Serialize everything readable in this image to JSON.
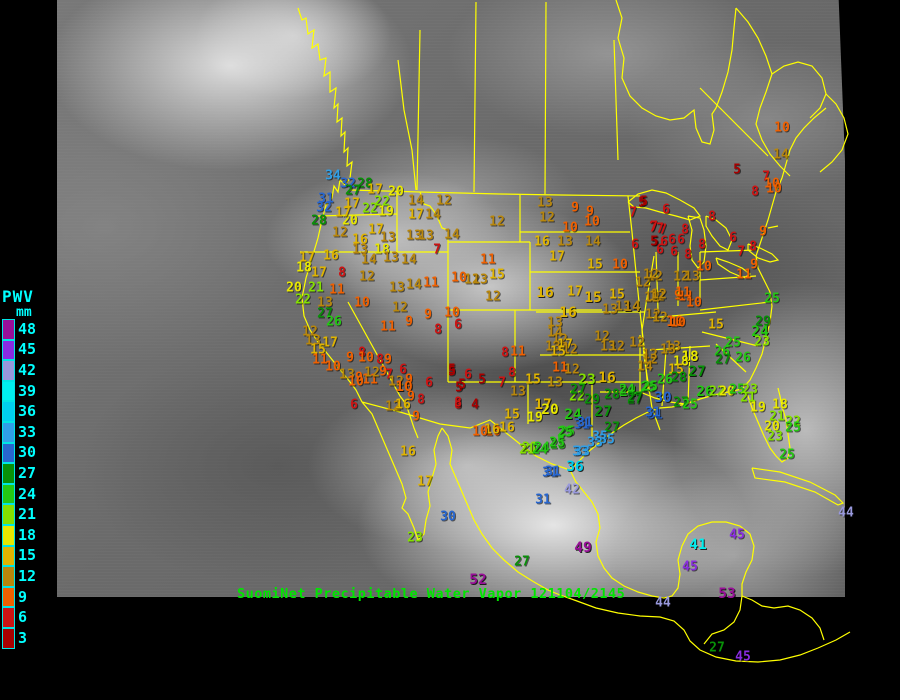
{
  "header": {
    "caption": "SuomiNet Precipitable Water Vapor 121104/2145"
  },
  "colors": {
    "background": "#000000",
    "outline": "#ffff00",
    "caption": "#00e600",
    "legend_text": "#00ffff"
  },
  "legend": {
    "title": "PWV",
    "unit": "mm",
    "entries": [
      {
        "value": 48,
        "color": "#990f99"
      },
      {
        "value": 45,
        "color": "#8a2be2"
      },
      {
        "value": 42,
        "color": "#9898dc"
      },
      {
        "value": 39,
        "color": "#00efef"
      },
      {
        "value": 36,
        "color": "#00cfee"
      },
      {
        "value": 33,
        "color": "#2f9fe8"
      },
      {
        "value": 30,
        "color": "#2766cf"
      },
      {
        "value": 27,
        "color": "#089008"
      },
      {
        "value": 24,
        "color": "#24c814"
      },
      {
        "value": 21,
        "color": "#84e000"
      },
      {
        "value": 18,
        "color": "#e8e800"
      },
      {
        "value": 15,
        "color": "#e0b400"
      },
      {
        "value": 12,
        "color": "#b8860b"
      },
      {
        "value": 9,
        "color": "#f06000"
      },
      {
        "value": 6,
        "color": "#cc1414"
      },
      {
        "value": 3,
        "color": "#a80000"
      }
    ]
  },
  "chart_data": {
    "type": "scatter",
    "title": "SuomiNet Precipitable Water Vapor",
    "timestamp": "121104/2145",
    "unit": "mm",
    "note": "station precipitable-water values plotted at map position (page px)",
    "stations": [
      [
        333,
        176,
        34
      ],
      [
        348,
        184,
        32
      ],
      [
        365,
        184,
        28
      ],
      [
        353,
        191,
        27
      ],
      [
        326,
        199,
        31
      ],
      [
        324,
        208,
        32
      ],
      [
        319,
        221,
        28
      ],
      [
        352,
        204,
        17
      ],
      [
        370,
        209,
        22
      ],
      [
        382,
        202,
        22
      ],
      [
        386,
        212,
        19
      ],
      [
        375,
        190,
        17
      ],
      [
        396,
        192,
        20
      ],
      [
        350,
        221,
        20
      ],
      [
        343,
        213,
        17
      ],
      [
        416,
        201,
        14
      ],
      [
        444,
        201,
        12
      ],
      [
        376,
        230,
        17
      ],
      [
        416,
        215,
        17
      ],
      [
        433,
        215,
        14
      ],
      [
        340,
        233,
        12
      ],
      [
        360,
        240,
        16
      ],
      [
        388,
        238,
        13
      ],
      [
        414,
        236,
        13
      ],
      [
        426,
        236,
        13
      ],
      [
        452,
        235,
        14
      ],
      [
        437,
        250,
        7
      ],
      [
        360,
        250,
        13
      ],
      [
        382,
        250,
        18
      ],
      [
        369,
        260,
        14
      ],
      [
        391,
        258,
        13
      ],
      [
        409,
        260,
        14
      ],
      [
        331,
        256,
        16
      ],
      [
        307,
        258,
        17
      ],
      [
        304,
        268,
        18
      ],
      [
        319,
        273,
        17
      ],
      [
        342,
        273,
        8
      ],
      [
        367,
        277,
        12
      ],
      [
        294,
        288,
        20
      ],
      [
        316,
        288,
        21
      ],
      [
        337,
        290,
        11
      ],
      [
        397,
        288,
        13
      ],
      [
        414,
        285,
        14
      ],
      [
        431,
        283,
        11
      ],
      [
        459,
        278,
        10
      ],
      [
        472,
        280,
        12
      ],
      [
        303,
        300,
        22
      ],
      [
        325,
        303,
        13
      ],
      [
        362,
        303,
        10
      ],
      [
        325,
        314,
        27
      ],
      [
        334,
        322,
        26
      ],
      [
        400,
        308,
        12
      ],
      [
        388,
        327,
        11
      ],
      [
        409,
        322,
        9
      ],
      [
        428,
        315,
        9
      ],
      [
        452,
        313,
        10
      ],
      [
        438,
        330,
        8
      ],
      [
        458,
        325,
        6
      ],
      [
        310,
        332,
        12
      ],
      [
        313,
        341,
        13
      ],
      [
        330,
        343,
        17
      ],
      [
        318,
        350,
        15
      ],
      [
        350,
        358,
        9
      ],
      [
        362,
        353,
        8
      ],
      [
        366,
        358,
        10
      ],
      [
        380,
        360,
        8
      ],
      [
        388,
        360,
        9
      ],
      [
        320,
        360,
        11
      ],
      [
        333,
        367,
        10
      ],
      [
        347,
        375,
        13
      ],
      [
        359,
        378,
        9
      ],
      [
        370,
        380,
        11
      ],
      [
        356,
        382,
        10
      ],
      [
        372,
        373,
        12
      ],
      [
        383,
        372,
        9
      ],
      [
        389,
        375,
        7
      ],
      [
        403,
        370,
        6
      ],
      [
        396,
        382,
        12
      ],
      [
        409,
        380,
        9
      ],
      [
        404,
        387,
        10,
        1
      ],
      [
        411,
        397,
        9
      ],
      [
        421,
        400,
        8
      ],
      [
        429,
        383,
        6
      ],
      [
        452,
        370,
        5
      ],
      [
        459,
        388,
        5
      ],
      [
        458,
        405,
        8
      ],
      [
        354,
        405,
        6
      ],
      [
        393,
        407,
        12
      ],
      [
        403,
        405,
        16
      ],
      [
        416,
        417,
        9
      ],
      [
        452,
        372,
        5
      ],
      [
        468,
        375,
        6
      ],
      [
        482,
        380,
        5
      ],
      [
        462,
        385,
        5
      ],
      [
        458,
        403,
        8
      ],
      [
        475,
        405,
        4
      ],
      [
        502,
        383,
        7
      ],
      [
        505,
        353,
        8
      ],
      [
        518,
        352,
        11
      ],
      [
        512,
        373,
        8
      ],
      [
        533,
        380,
        15
      ],
      [
        518,
        392,
        13
      ],
      [
        543,
        405,
        17,
        1
      ],
      [
        512,
        415,
        15
      ],
      [
        535,
        418,
        19
      ],
      [
        550,
        410,
        20,
        1
      ],
      [
        493,
        432,
        10
      ],
      [
        507,
        428,
        16
      ],
      [
        530,
        448,
        21
      ],
      [
        542,
        448,
        24
      ],
      [
        558,
        445,
        25
      ],
      [
        567,
        432,
        25
      ],
      [
        582,
        425,
        31
      ],
      [
        573,
        415,
        24,
        1
      ],
      [
        555,
        383,
        13
      ],
      [
        560,
        368,
        11
      ],
      [
        572,
        370,
        12
      ],
      [
        587,
        380,
        23,
        1
      ],
      [
        607,
        378,
        16,
        1
      ],
      [
        577,
        397,
        22
      ],
      [
        578,
        390,
        27
      ],
      [
        592,
        400,
        29
      ],
      [
        612,
        395,
        28
      ],
      [
        628,
        392,
        24,
        1
      ],
      [
        648,
        388,
        25
      ],
      [
        635,
        400,
        27
      ],
      [
        603,
        412,
        27,
        1
      ],
      [
        612,
        428,
        27
      ],
      [
        655,
        415,
        31
      ],
      [
        600,
        437,
        35
      ],
      [
        580,
        452,
        33
      ],
      [
        607,
        440,
        35
      ],
      [
        575,
        467,
        36,
        1
      ],
      [
        550,
        473,
        31
      ],
      [
        497,
        222,
        12
      ],
      [
        545,
        203,
        13
      ],
      [
        547,
        218,
        12
      ],
      [
        575,
        208,
        9
      ],
      [
        590,
        212,
        9
      ],
      [
        570,
        228,
        10
      ],
      [
        592,
        222,
        10
      ],
      [
        542,
        242,
        16
      ],
      [
        565,
        242,
        13
      ],
      [
        593,
        242,
        14
      ],
      [
        557,
        257,
        17
      ],
      [
        595,
        265,
        15
      ],
      [
        620,
        265,
        10
      ],
      [
        642,
        203,
        5
      ],
      [
        633,
        213,
        7
      ],
      [
        653,
        228,
        7
      ],
      [
        663,
        230,
        7
      ],
      [
        635,
        245,
        6
      ],
      [
        655,
        242,
        5
      ],
      [
        660,
        250,
        6
      ],
      [
        655,
        277,
        12
      ],
      [
        643,
        283,
        12
      ],
      [
        657,
        297,
        12
      ],
      [
        545,
        293,
        16,
        1
      ],
      [
        575,
        292,
        17
      ],
      [
        593,
        298,
        15,
        1
      ],
      [
        617,
        295,
        15
      ],
      [
        568,
        313,
        16,
        1
      ],
      [
        610,
        310,
        13
      ],
      [
        623,
        307,
        13
      ],
      [
        632,
        307,
        14,
        1
      ],
      [
        652,
        298,
        12
      ],
      [
        678,
        296,
        9
      ],
      [
        686,
        297,
        11
      ],
      [
        653,
        315,
        12
      ],
      [
        675,
        322,
        10,
        1
      ],
      [
        555,
        323,
        13
      ],
      [
        555,
        333,
        14
      ],
      [
        560,
        340,
        12
      ],
      [
        565,
        345,
        17
      ],
      [
        553,
        347,
        13
      ],
      [
        570,
        350,
        12
      ],
      [
        558,
        352,
        15
      ],
      [
        602,
        337,
        12
      ],
      [
        608,
        347,
        13
      ],
      [
        617,
        347,
        12
      ],
      [
        637,
        343,
        12
      ],
      [
        650,
        355,
        12
      ],
      [
        673,
        347,
        13
      ],
      [
        690,
        357,
        18,
        1
      ],
      [
        488,
        260,
        11
      ],
      [
        497,
        275,
        15
      ],
      [
        480,
        280,
        13
      ],
      [
        493,
        297,
        12
      ],
      [
        737,
        170,
        5
      ],
      [
        766,
        177,
        7
      ],
      [
        772,
        184,
        10
      ],
      [
        755,
        192,
        8
      ],
      [
        774,
        189,
        10
      ],
      [
        781,
        155,
        14
      ],
      [
        712,
        217,
        8
      ],
      [
        733,
        238,
        6
      ],
      [
        763,
        232,
        9
      ],
      [
        753,
        247,
        8
      ],
      [
        741,
        252,
        7
      ],
      [
        702,
        245,
        8
      ],
      [
        685,
        230,
        8
      ],
      [
        681,
        240,
        6
      ],
      [
        674,
        252,
        6
      ],
      [
        688,
        255,
        8
      ],
      [
        654,
        242,
        5
      ],
      [
        664,
        242,
        6
      ],
      [
        672,
        240,
        6
      ],
      [
        654,
        227,
        7
      ],
      [
        660,
        229,
        7
      ],
      [
        666,
        210,
        6
      ],
      [
        644,
        202,
        5
      ],
      [
        704,
        267,
        10
      ],
      [
        681,
        277,
        12
      ],
      [
        692,
        277,
        13
      ],
      [
        651,
        275,
        12
      ],
      [
        683,
        293,
        11
      ],
      [
        659,
        295,
        12
      ],
      [
        694,
        303,
        10
      ],
      [
        744,
        275,
        11
      ],
      [
        754,
        265,
        9
      ],
      [
        772,
        299,
        25
      ],
      [
        782,
        128,
        10
      ],
      [
        660,
        318,
        12
      ],
      [
        678,
        323,
        10
      ],
      [
        668,
        350,
        13
      ],
      [
        650,
        360,
        12
      ],
      [
        645,
        367,
        14
      ],
      [
        681,
        362,
        18
      ],
      [
        676,
        370,
        15
      ],
      [
        716,
        325,
        15
      ],
      [
        763,
        322,
        29
      ],
      [
        760,
        332,
        24,
        1
      ],
      [
        762,
        342,
        23
      ],
      [
        733,
        343,
        25
      ],
      [
        722,
        352,
        26
      ],
      [
        723,
        360,
        27
      ],
      [
        743,
        358,
        26
      ],
      [
        697,
        372,
        27,
        1
      ],
      [
        665,
        380,
        26
      ],
      [
        679,
        378,
        28
      ],
      [
        650,
        387,
        25
      ],
      [
        627,
        390,
        24
      ],
      [
        635,
        398,
        27
      ],
      [
        663,
        398,
        30,
        1
      ],
      [
        653,
        413,
        31
      ],
      [
        681,
        403,
        27
      ],
      [
        690,
        405,
        25
      ],
      [
        705,
        392,
        26,
        1
      ],
      [
        717,
        392,
        22
      ],
      [
        727,
        392,
        20
      ],
      [
        737,
        390,
        25
      ],
      [
        750,
        390,
        23
      ],
      [
        748,
        398,
        21
      ],
      [
        758,
        408,
        19
      ],
      [
        780,
        405,
        18
      ],
      [
        777,
        417,
        21
      ],
      [
        793,
        422,
        22
      ],
      [
        772,
        427,
        20
      ],
      [
        793,
        428,
        25
      ],
      [
        775,
        437,
        23
      ],
      [
        787,
        455,
        25
      ],
      [
        408,
        452,
        16
      ],
      [
        425,
        482,
        17
      ],
      [
        448,
        517,
        30
      ],
      [
        415,
        538,
        23
      ],
      [
        478,
        580,
        52,
        1
      ],
      [
        522,
        562,
        27
      ],
      [
        583,
        548,
        49,
        1
      ],
      [
        543,
        500,
        31
      ],
      [
        553,
        472,
        31
      ],
      [
        572,
        490,
        42
      ],
      [
        582,
        452,
        33
      ],
      [
        595,
        443,
        33
      ],
      [
        585,
        423,
        31
      ],
      [
        565,
        433,
        25
      ],
      [
        557,
        443,
        25
      ],
      [
        527,
        450,
        21
      ],
      [
        540,
        450,
        24
      ],
      [
        492,
        430,
        16
      ],
      [
        480,
        432,
        10
      ],
      [
        698,
        545,
        41,
        1
      ],
      [
        690,
        567,
        45
      ],
      [
        737,
        535,
        45
      ],
      [
        727,
        594,
        53,
        1
      ],
      [
        663,
        603,
        44
      ],
      [
        717,
        648,
        27
      ],
      [
        743,
        657,
        45
      ],
      [
        846,
        513,
        44
      ]
    ]
  }
}
